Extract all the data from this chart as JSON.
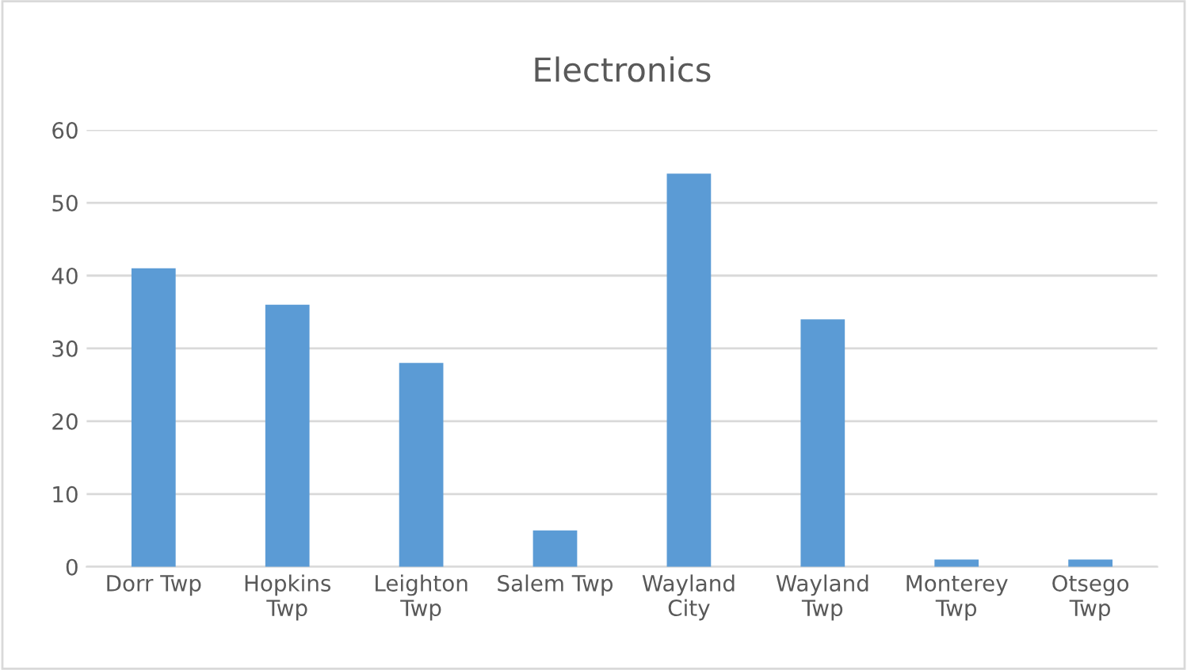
{
  "chart_data": {
    "type": "bar",
    "title": "Electronics",
    "categories": [
      "Dorr Twp",
      "Hopkins\nTwp",
      "Leighton\nTwp",
      "Salem Twp",
      "Wayland\nCity",
      "Wayland\nTwp",
      "Monterey\nTwp",
      "Otsego\nTwp"
    ],
    "values": [
      41,
      36,
      28,
      5,
      54,
      34,
      1,
      1
    ],
    "color": "#5b9bd5",
    "ylim": [
      0,
      60
    ],
    "yticks": [
      0,
      10,
      20,
      30,
      40,
      50,
      60
    ],
    "grid": "y"
  }
}
